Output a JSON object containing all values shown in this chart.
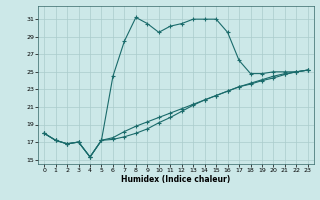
{
  "xlabel": "Humidex (Indice chaleur)",
  "bg_color": "#cce8e8",
  "line_color": "#1a6b6b",
  "grid_color": "#aacccc",
  "xlim": [
    -0.5,
    23.5
  ],
  "ylim": [
    14.5,
    32.5
  ],
  "xticks": [
    0,
    1,
    2,
    3,
    4,
    5,
    6,
    7,
    8,
    9,
    10,
    11,
    12,
    13,
    14,
    15,
    16,
    17,
    18,
    19,
    20,
    21,
    22,
    23
  ],
  "yticks": [
    15,
    17,
    19,
    21,
    23,
    25,
    27,
    29,
    31
  ],
  "series1_x": [
    0,
    1,
    2,
    3,
    4,
    5,
    6,
    7,
    8,
    9,
    10,
    11,
    12,
    13,
    14,
    15,
    16,
    17,
    18,
    19,
    20,
    21,
    22,
    23
  ],
  "series1_y": [
    18.0,
    17.2,
    16.8,
    17.0,
    15.3,
    17.2,
    24.5,
    28.5,
    31.2,
    30.5,
    29.5,
    30.2,
    30.5,
    31.0,
    31.0,
    31.0,
    29.5,
    26.3,
    24.8,
    24.8,
    25.0,
    25.0,
    25.0,
    25.2
  ],
  "series2_x": [
    0,
    1,
    2,
    3,
    4,
    5,
    6,
    7,
    8,
    9,
    10,
    11,
    12,
    13,
    14,
    15,
    16,
    17,
    18,
    19,
    20,
    21,
    22,
    23
  ],
  "series2_y": [
    18.0,
    17.2,
    16.8,
    17.0,
    15.3,
    17.2,
    17.3,
    17.6,
    18.0,
    18.5,
    19.2,
    19.8,
    20.5,
    21.2,
    21.8,
    22.3,
    22.8,
    23.3,
    23.7,
    24.1,
    24.5,
    24.8,
    25.0,
    25.2
  ],
  "series3_x": [
    0,
    1,
    2,
    3,
    4,
    5,
    6,
    7,
    8,
    9,
    10,
    11,
    12,
    13,
    14,
    15,
    16,
    17,
    18,
    19,
    20,
    21,
    22,
    23
  ],
  "series3_y": [
    18.0,
    17.2,
    16.8,
    17.0,
    15.3,
    17.2,
    17.5,
    18.2,
    18.8,
    19.3,
    19.8,
    20.3,
    20.8,
    21.3,
    21.8,
    22.3,
    22.8,
    23.3,
    23.6,
    24.0,
    24.3,
    24.7,
    25.0,
    25.2
  ]
}
